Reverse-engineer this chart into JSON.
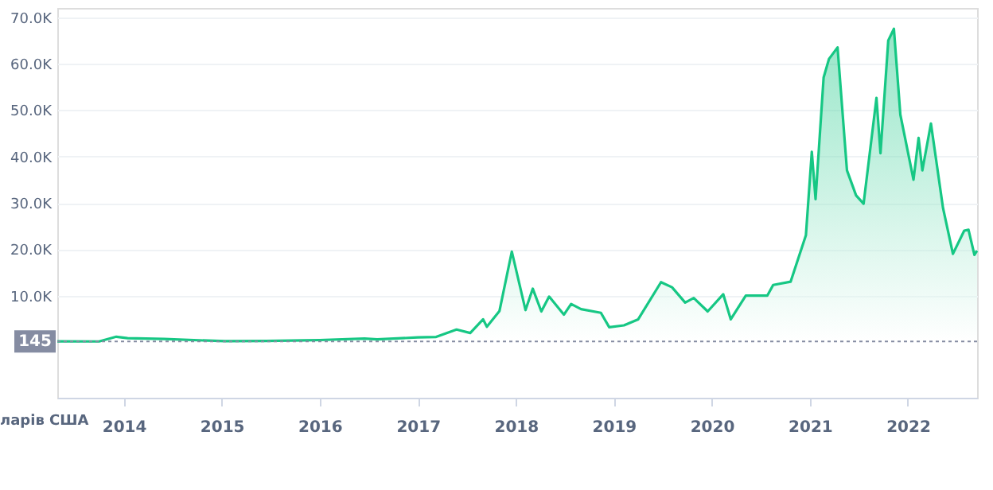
{
  "chart_data": {
    "type": "area",
    "x": [
      "2013-04-28",
      "2013-10-01",
      "2013-12-04",
      "2014-01-15",
      "2014-06-01",
      "2015-01-14",
      "2015-06-15",
      "2015-11-04",
      "2016-01-01",
      "2016-06-16",
      "2016-08-02",
      "2017-01-01",
      "2017-03-10",
      "2017-05-25",
      "2017-07-15",
      "2017-09-01",
      "2017-09-15",
      "2017-11-01",
      "2017-12-17",
      "2018-02-06",
      "2018-03-05",
      "2018-04-06",
      "2018-05-05",
      "2018-06-29",
      "2018-07-26",
      "2018-09-01",
      "2018-11-14",
      "2018-12-15",
      "2019-02-08",
      "2019-04-02",
      "2019-06-26",
      "2019-08-06",
      "2019-09-24",
      "2019-10-26",
      "2019-12-17",
      "2020-02-13",
      "2020-03-12",
      "2020-05-07",
      "2020-07-26",
      "2020-08-17",
      "2020-10-21",
      "2020-12-17",
      "2021-01-08",
      "2021-01-22",
      "2021-02-21",
      "2021-03-13",
      "2021-04-14",
      "2021-05-19",
      "2021-06-22",
      "2021-07-20",
      "2021-09-06",
      "2021-09-21",
      "2021-10-20",
      "2021-11-10",
      "2021-12-04",
      "2022-01-22",
      "2022-02-10",
      "2022-02-24",
      "2022-03-28",
      "2022-05-12",
      "2022-06-18",
      "2022-07-30",
      "2022-08-15",
      "2022-09-06",
      "2022-09-16"
    ],
    "series": [
      {
        "color": "#16c784",
        "values": [
          135,
          125,
          1150,
          850,
          650,
          180,
          250,
          380,
          430,
          760,
          580,
          1000,
          1100,
          2700,
          1950,
          4900,
          3300,
          6700,
          19500,
          6900,
          11500,
          6600,
          9800,
          5900,
          8200,
          7100,
          6300,
          3200,
          3600,
          4900,
          12900,
          11800,
          8500,
          9500,
          6600,
          10300,
          4900,
          10000,
          10000,
          12300,
          13000,
          23000,
          41000,
          30800,
          57000,
          61000,
          63500,
          37000,
          31600,
          29800,
          52600,
          40700,
          65000,
          67500,
          49000,
          35000,
          44000,
          37000,
          47100,
          28900,
          19000,
          24000,
          24200,
          18800,
          19700
        ]
      }
    ],
    "xlim": [
      "2013-04-28",
      "2022-09-16"
    ],
    "xticks": [
      {
        "value": "2014-01-01",
        "label": "2014"
      },
      {
        "value": "2015-01-01",
        "label": "2015"
      },
      {
        "value": "2016-01-01",
        "label": "2016"
      },
      {
        "value": "2017-01-01",
        "label": "2017"
      },
      {
        "value": "2018-01-01",
        "label": "2018"
      },
      {
        "value": "2019-01-01",
        "label": "2019"
      },
      {
        "value": "2020-01-01",
        "label": "2020"
      },
      {
        "value": "2021-01-01",
        "label": "2021"
      },
      {
        "value": "2022-01-01",
        "label": "2022"
      }
    ],
    "ylim": [
      -12000,
      72000
    ],
    "yticks": [
      {
        "value": 10000,
        "label": "10.0K"
      },
      {
        "value": 20000,
        "label": "20.0K"
      },
      {
        "value": 30000,
        "label": "30.0K"
      },
      {
        "value": 40000,
        "label": "40.0K"
      },
      {
        "value": 50000,
        "label": "50.0K"
      },
      {
        "value": 60000,
        "label": "60.0K"
      },
      {
        "value": 70000,
        "label": "70.0K"
      }
    ],
    "ref_lines": [
      {
        "axis": "y",
        "value": 145,
        "label": "145",
        "color": "#858ca2",
        "line_style": "dotted"
      }
    ],
    "annotations": [
      "ларів США"
    ],
    "grid": "y"
  }
}
